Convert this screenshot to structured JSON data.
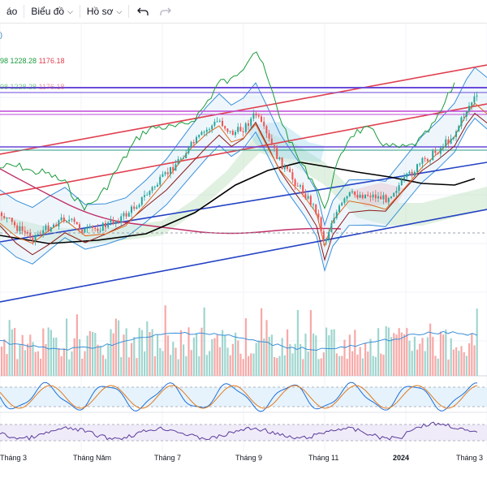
{
  "toolbar": {
    "items": [
      {
        "label": "áo",
        "has_menu": false
      },
      {
        "label": "Biểu đồ",
        "has_menu": true
      },
      {
        "label": "Hồ sơ",
        "has_menu": true
      }
    ],
    "undo_icon": "undo-icon",
    "redo_icon": "redo-icon"
  },
  "legend": {
    "row1": {
      "prefix": ")"
    },
    "row2": {
      "v1": "98",
      "v2": "1228.28",
      "v3": "1176.18"
    },
    "row3": {
      "v1": "98",
      "v2": "1228.28",
      "v3": "1176.18"
    }
  },
  "colors": {
    "up": "#26a69a",
    "down": "#ef5350",
    "vol_up": "#9fd6cf",
    "vol_down": "#f7a9a7",
    "bb": "#3a8fd9",
    "psar": "#1a9b3c",
    "ma_long": "#000000",
    "ma_mid": "#8b1a1a",
    "ma_short": "#e0671f",
    "trend_red": "#e0404f",
    "trend_blue": "#2442c4",
    "hline_purple": "#6a4bd8",
    "hline_magenta": "#c04ad8",
    "hline_teal": "#2a9a8a",
    "stoch_k": "#1e6fd9",
    "stoch_d": "#e07b1f",
    "rsi": "#5a3c9a"
  },
  "xaxis": {
    "labels": [
      "Tháng 3",
      "Tháng Năm",
      "Tháng 7",
      "Tháng 9",
      "Tháng 11",
      "2024",
      "Tháng 3"
    ]
  },
  "chart_data": {
    "type": "candlestick",
    "x_labels": [
      "Tháng 3",
      "Tháng Năm",
      "Tháng 7",
      "Tháng 9",
      "Tháng 11",
      "2024",
      "Tháng 3"
    ],
    "legend_values": [
      1228.28,
      1176.18
    ],
    "key_points": [
      {
        "period": "Tháng 3",
        "approx_close": 1040
      },
      {
        "period": "Tháng Năm",
        "approx_close": 1060
      },
      {
        "period": "Tháng 7",
        "approx_close": 1150
      },
      {
        "period": "Tháng 8",
        "approx_close": 1230
      },
      {
        "period": "Tháng 9",
        "approx_close": 1200
      },
      {
        "period": "Tháng 11",
        "approx_close": 1050
      },
      {
        "period": "2024",
        "approx_close": 1140
      },
      {
        "period": "Tháng 3",
        "approx_close": 1265
      }
    ],
    "panels": [
      "price",
      "volume",
      "stochastic",
      "rsi"
    ],
    "grid": true
  }
}
